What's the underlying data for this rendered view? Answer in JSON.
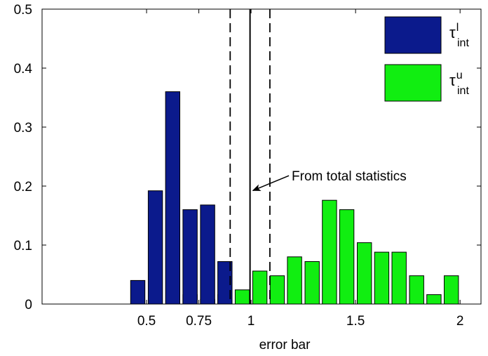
{
  "chart_data": {
    "type": "bar",
    "xlabel": "error bar",
    "ylabel": "",
    "title": "",
    "xlim": [
      0,
      2.1
    ],
    "ylim": [
      0,
      0.5
    ],
    "xticks": [
      0.5,
      0.75,
      1,
      1.5,
      2
    ],
    "xtick_labels": [
      "0.5",
      "0.75",
      "1",
      "1.5",
      "2"
    ],
    "yticks": [
      0,
      0.1,
      0.2,
      0.3,
      0.4,
      0.5
    ],
    "ytick_labels": [
      "0",
      "0.1",
      "0.2",
      "0.3",
      "0.4",
      "0.5"
    ],
    "bin_width": 0.08333,
    "series": [
      {
        "name": "τ_int^l",
        "name_base": "τ",
        "name_sup": "l",
        "name_sub": "int",
        "color": "#0b1a8c",
        "x": [
          0.458,
          0.542,
          0.625,
          0.708,
          0.792,
          0.875
        ],
        "values": [
          0.04,
          0.192,
          0.36,
          0.16,
          0.168,
          0.072
        ]
      },
      {
        "name": "τ_int^u",
        "name_base": "τ",
        "name_sup": "u",
        "name_sub": "int",
        "color": "#11ee11",
        "x": [
          0.708,
          0.792,
          0.875,
          0.958,
          1.042,
          1.125,
          1.208,
          1.292,
          1.375,
          1.458,
          1.542,
          1.625,
          1.708,
          1.792,
          1.875,
          1.958
        ],
        "values": [
          0.016,
          0.008,
          0.016,
          0.024,
          0.056,
          0.048,
          0.08,
          0.072,
          0.176,
          0.16,
          0.104,
          0.088,
          0.088,
          0.048,
          0.016,
          0.048
        ]
      }
    ],
    "vertical_lines": [
      {
        "x": 0.9,
        "style": "dashed"
      },
      {
        "x": 0.995,
        "style": "solid"
      },
      {
        "x": 1.09,
        "style": "dashed"
      }
    ],
    "annotation": {
      "text": "From total statistics",
      "point_x": 0.995,
      "point_y": 0.19,
      "text_x": 1.02,
      "text_y": 0.22
    },
    "legend_position": "top-right",
    "grid": false
  }
}
